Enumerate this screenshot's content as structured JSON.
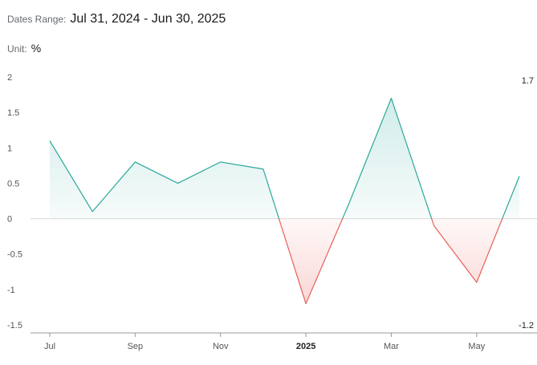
{
  "header": {
    "range_label": "Dates Range:",
    "range_value": "Jul 31, 2024 - Jun 30, 2025",
    "unit_label": "Unit:",
    "unit_value": "%"
  },
  "colors": {
    "positive": "#2aa89a",
    "negative": "#e8605a",
    "zero_line": "#d9d9d9",
    "axis": "#999999",
    "tick_text": "#555555",
    "strong_tick_text": "#222222"
  },
  "chart_data": {
    "type": "area",
    "x": [
      "2024-07-31",
      "2024-08-31",
      "2024-09-30",
      "2024-10-31",
      "2024-11-30",
      "2024-12-31",
      "2025-01-31",
      "2025-02-28",
      "2025-03-31",
      "2025-04-30",
      "2025-05-31",
      "2025-06-30"
    ],
    "values": [
      1.1,
      0.1,
      0.8,
      0.5,
      0.8,
      0.7,
      -1.2,
      0.2,
      1.7,
      -0.1,
      -0.9,
      0.6
    ],
    "x_ticks": [
      {
        "label": "Jul",
        "index": 0,
        "bold": false
      },
      {
        "label": "Sep",
        "index": 2,
        "bold": false
      },
      {
        "label": "Nov",
        "index": 4,
        "bold": false
      },
      {
        "label": "2025",
        "index": 6,
        "bold": true
      },
      {
        "label": "Mar",
        "index": 8,
        "bold": false
      },
      {
        "label": "May",
        "index": 10,
        "bold": false
      }
    ],
    "y_ticks": [
      "2",
      "1.5",
      "1",
      "0.5",
      "0",
      "-0.5",
      "-1",
      "-1.5"
    ],
    "ylim": [
      -1.5,
      2
    ],
    "max_label": "1.7",
    "min_label": "-1.2",
    "grid": false,
    "legend": "none",
    "title": "",
    "xlabel": "",
    "ylabel": ""
  }
}
